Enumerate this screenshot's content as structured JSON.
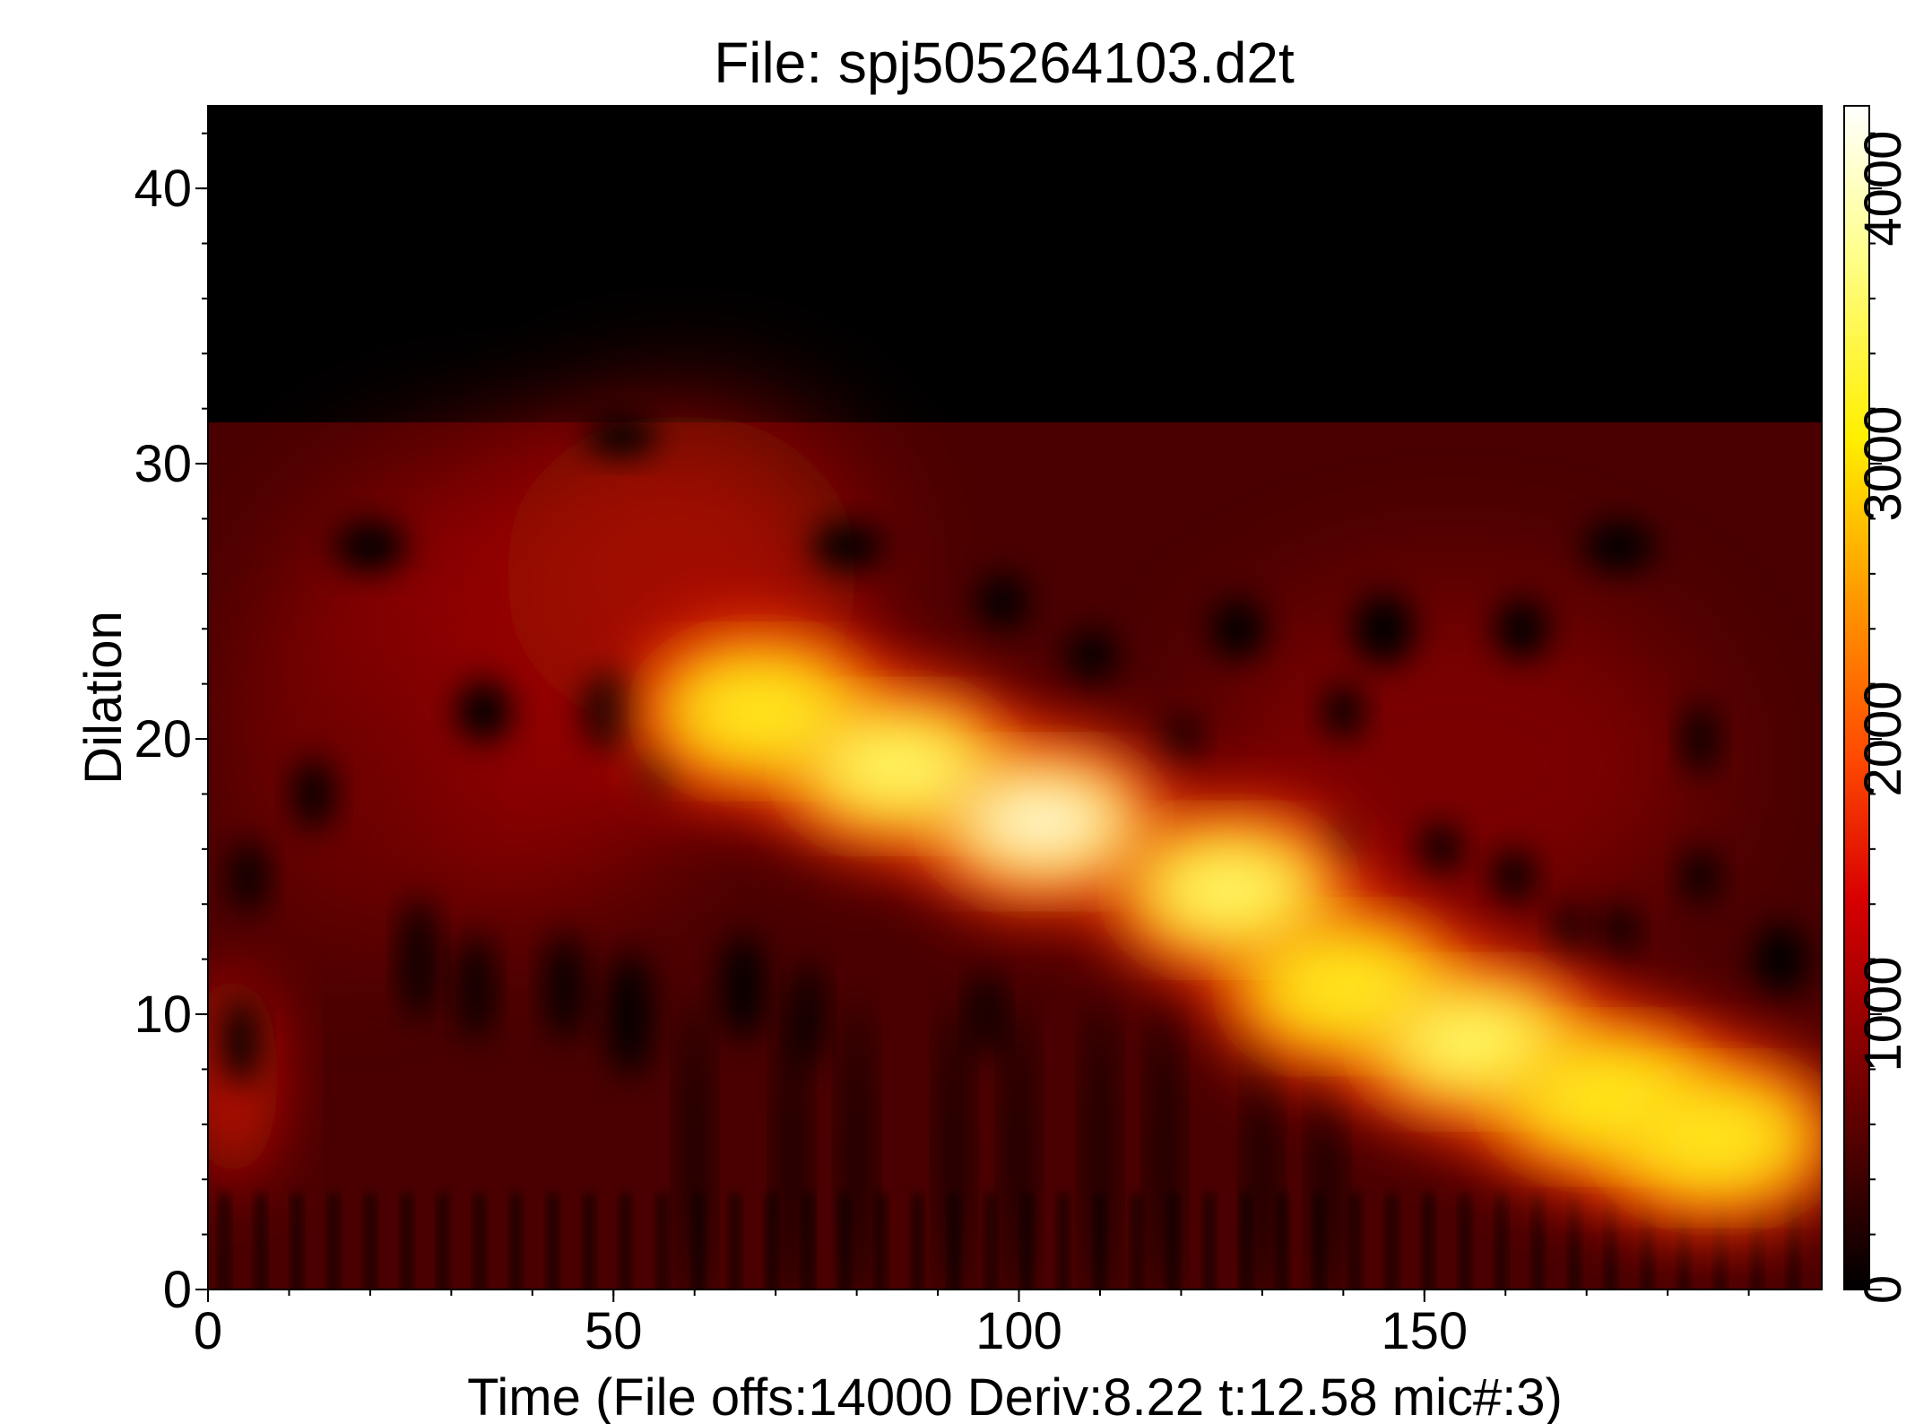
{
  "chart_data": {
    "type": "heatmap",
    "title": "File: spj505264103.d2t",
    "xlabel": "Time (File offs:14000 Deriv:8.22 t:12.58 mic#:3)",
    "ylabel": "Dilation",
    "xlim": [
      0,
      199
    ],
    "ylim": [
      0,
      43
    ],
    "x_ticks": [
      0,
      50,
      100,
      150
    ],
    "y_ticks": [
      0,
      10,
      20,
      30,
      40
    ],
    "colorbar": {
      "range": [
        0,
        4300
      ],
      "ticks": [
        0,
        1000,
        2000,
        3000,
        4000
      ],
      "colormap": "hot",
      "position": "right"
    },
    "empty_above_dilation": 31.5,
    "high_energy_ridge": [
      {
        "time": 68,
        "dilation": 21,
        "value": 3200
      },
      {
        "time": 85,
        "dilation": 19,
        "value": 4000
      },
      {
        "time": 103,
        "dilation": 17,
        "value": 4300
      },
      {
        "time": 126,
        "dilation": 14.5,
        "value": 4000
      },
      {
        "time": 140,
        "dilation": 11,
        "value": 3500
      },
      {
        "time": 156,
        "dilation": 9,
        "value": 3900
      },
      {
        "time": 172,
        "dilation": 7,
        "value": 3300
      },
      {
        "time": 186,
        "dilation": 5.5,
        "value": 3000
      }
    ],
    "grid": false
  }
}
